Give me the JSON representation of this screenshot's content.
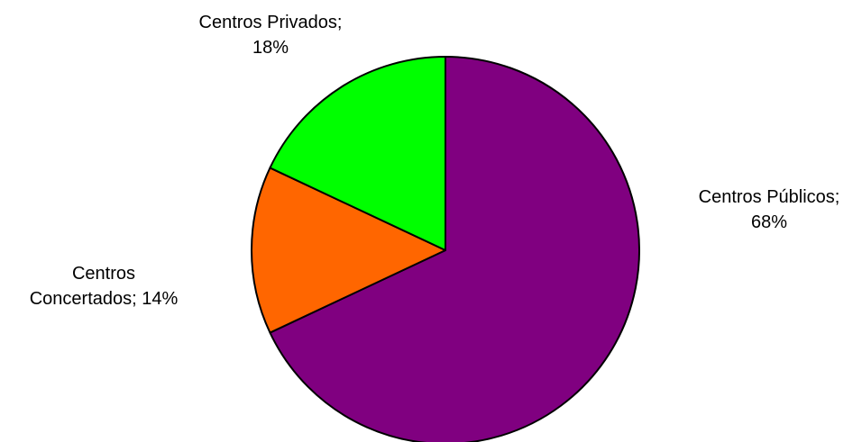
{
  "chart_data": {
    "type": "pie",
    "title": "",
    "legend": "none",
    "slices": [
      {
        "label_line1": "Centros Públicos;",
        "label_line2": "68%",
        "category": "Centros Públicos",
        "value": 68,
        "color": "#800080"
      },
      {
        "label_line1": "Centros",
        "label_line2": "Concertados; 14%",
        "category": "Centros Concertados",
        "value": 14,
        "color": "#FF6600"
      },
      {
        "label_line1": "Centros Privados;",
        "label_line2": "18%",
        "category": "Centros Privados",
        "value": 18,
        "color": "#00FF00"
      }
    ]
  }
}
